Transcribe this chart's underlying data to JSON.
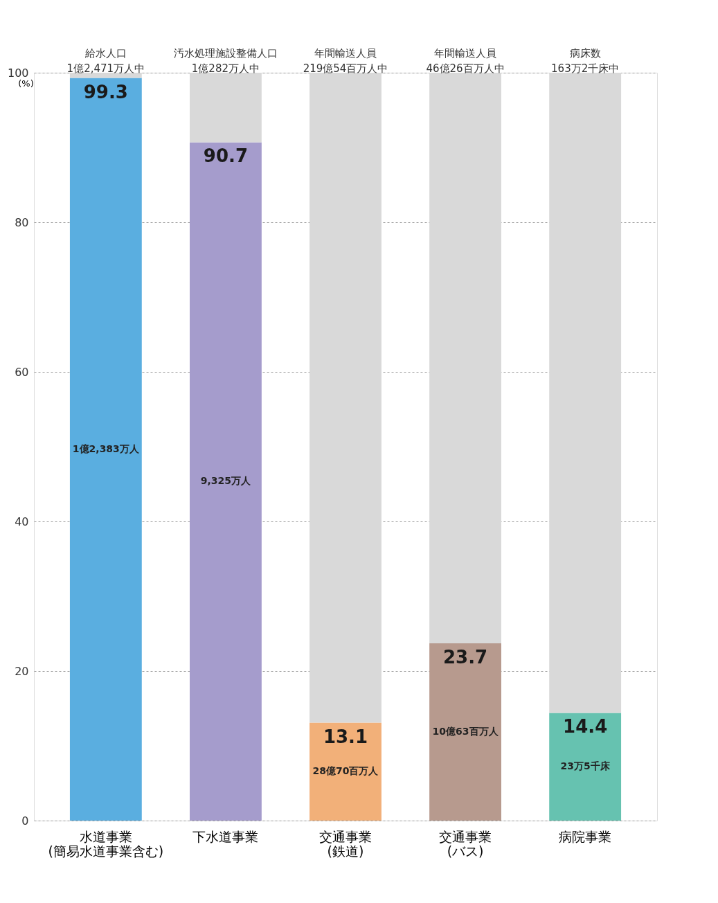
{
  "chart_data": {
    "type": "bar",
    "stacked": true,
    "ylabel": "(%)",
    "categories": [
      "水道事業\n(簡易水道事業含む)",
      "下水道事業",
      "交通事業\n(鉄道)",
      "交通事業\n(バス)",
      "病院事業"
    ],
    "series": [
      {
        "colors": [
          "#5aaee0",
          "#a59ccc",
          "#f2b079",
          "#b79a8e",
          "#66c2b0"
        ],
        "values": [
          99.3,
          90.7,
          13.1,
          23.7,
          14.4
        ],
        "value_labels": [
          "99.3",
          "90.7",
          "13.1",
          "23.7",
          "14.4"
        ]
      },
      {
        "color": "#d9d9d9",
        "values": [
          0.7,
          9.3,
          86.9,
          76.3,
          85.6
        ]
      }
    ],
    "ylim": [
      0,
      100
    ],
    "yticks": [
      0,
      20,
      40,
      60,
      80,
      100
    ],
    "grid": "y",
    "legend": false,
    "annotations": [
      "給水人口\n1億2,471万人中",
      "汚水処理施設整備人口\n1億282万人中",
      "年間輸送人員\n219億54百万人中",
      "年間輸送人員\n46億26百万人中",
      "病床数\n163万2千床中",
      "1億2,383万人",
      "9,325万人",
      "28億70百万人",
      "10億63百万人",
      "23万5千床"
    ]
  }
}
